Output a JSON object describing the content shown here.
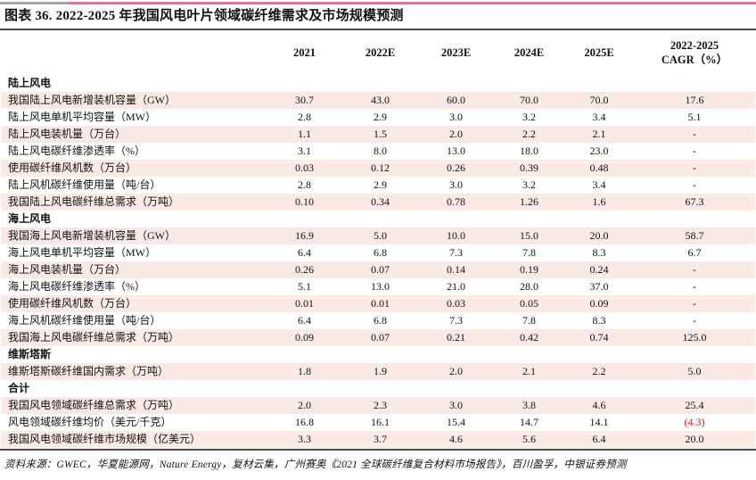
{
  "colors": {
    "row_stripe": "#fbe9e6",
    "accent_pink": "#d47f91",
    "accent_gray": "#a6a6a6",
    "rule_dark": "#4a4a4a",
    "negative_red": "#ee1111"
  },
  "title": "图表 36. 2022-2025 年我国风电叶片领域碳纤维需求及市场规模预测",
  "table": {
    "year_columns": [
      "2021",
      "2022E",
      "2023E",
      "2024E",
      "2025E"
    ],
    "cagr_line1": "2022-2025",
    "cagr_line2": "CAGR（%）",
    "rows": [
      {
        "type": "section",
        "label": "陆上风电"
      },
      {
        "type": "data",
        "shaded": true,
        "label": "我国陆上风电新增装机容量（GW）",
        "values": [
          "30.7",
          "43.0",
          "60.0",
          "70.0",
          "70.0",
          "17.6"
        ]
      },
      {
        "type": "data",
        "shaded": false,
        "label": "陆上风电单机平均容量（MW）",
        "values": [
          "2.8",
          "2.9",
          "3.0",
          "3.2",
          "3.4",
          "5.1"
        ]
      },
      {
        "type": "data",
        "shaded": true,
        "label": "陆上风电装机量（万台）",
        "values": [
          "1.1",
          "1.5",
          "2.0",
          "2.2",
          "2.1",
          "-"
        ]
      },
      {
        "type": "data",
        "shaded": false,
        "label": "陆上风电碳纤维渗透率（%）",
        "values": [
          "3.1",
          "8.0",
          "13.0",
          "18.0",
          "23.0",
          "-"
        ]
      },
      {
        "type": "data",
        "shaded": true,
        "label": "使用碳纤维风机数（万台）",
        "values": [
          "0.03",
          "0.12",
          "0.26",
          "0.39",
          "0.48",
          "-"
        ]
      },
      {
        "type": "data",
        "shaded": false,
        "label": "陆上风机碳纤维使用量（吨/台）",
        "values": [
          "2.8",
          "2.9",
          "3.0",
          "3.2",
          "3.4",
          "-"
        ]
      },
      {
        "type": "data",
        "shaded": true,
        "label": "我国陆上风电碳纤维总需求（万吨）",
        "values": [
          "0.10",
          "0.34",
          "0.78",
          "1.26",
          "1.6",
          "67.3"
        ]
      },
      {
        "type": "section",
        "label": "海上风电"
      },
      {
        "type": "data",
        "shaded": true,
        "label": "我国海上风电新增装机容量（GW）",
        "values": [
          "16.9",
          "5.0",
          "10.0",
          "15.0",
          "20.0",
          "58.7"
        ]
      },
      {
        "type": "data",
        "shaded": false,
        "label": "海上风电单机平均容量（MW）",
        "values": [
          "6.4",
          "6.8",
          "7.3",
          "7.8",
          "8.3",
          "6.7"
        ]
      },
      {
        "type": "data",
        "shaded": true,
        "label": "海上风电装机量（万台）",
        "values": [
          "0.26",
          "0.07",
          "0.14",
          "0.19",
          "0.24",
          "-"
        ]
      },
      {
        "type": "data",
        "shaded": false,
        "label": "海上风电碳纤维渗透率（%）",
        "values": [
          "5.1",
          "13.0",
          "21.0",
          "28.0",
          "37.0",
          "-"
        ]
      },
      {
        "type": "data",
        "shaded": true,
        "label": "使用碳纤维风机数（万台）",
        "values": [
          "0.01",
          "0.01",
          "0.03",
          "0.05",
          "0.09",
          "-"
        ]
      },
      {
        "type": "data",
        "shaded": false,
        "label": "海上风机碳纤维使用量（吨/台）",
        "values": [
          "6.4",
          "6.8",
          "7.3",
          "7.8",
          "8.3",
          "-"
        ]
      },
      {
        "type": "data",
        "shaded": true,
        "label": "我国海上风电碳纤维总需求（万吨）",
        "values": [
          "0.09",
          "0.07",
          "0.21",
          "0.42",
          "0.74",
          "125.0"
        ]
      },
      {
        "type": "section",
        "label": "维斯塔斯"
      },
      {
        "type": "data",
        "shaded": true,
        "label": "维斯塔斯碳纤维国内需求（万吨）",
        "values": [
          "1.8",
          "1.9",
          "2.0",
          "2.1",
          "2.2",
          "5.0"
        ]
      },
      {
        "type": "section",
        "label": "合计"
      },
      {
        "type": "data",
        "shaded": true,
        "label": "我国风电领域碳纤维总需求（万吨）",
        "values": [
          "2.0",
          "2.3",
          "3.0",
          "3.8",
          "4.6",
          "25.4"
        ]
      },
      {
        "type": "data",
        "shaded": false,
        "label": "风电领域碳纤维均价（美元/千克）",
        "values": [
          "16.8",
          "16.1",
          "15.4",
          "14.7",
          "14.1",
          "(4.3)"
        ],
        "red_cols": [
          5
        ]
      },
      {
        "type": "data",
        "shaded": true,
        "label": "我国风电领域碳纤维市场规模（亿美元）",
        "values": [
          "3.3",
          "3.7",
          "4.6",
          "5.6",
          "6.4",
          "20.0"
        ]
      }
    ]
  },
  "source": "资料来源：GWEC，华夏能源网，Nature Energy，复材云集，广州赛奥《2021 全球碳纤维复合材料市场报告》，百川盈孚，中银证券预测"
}
